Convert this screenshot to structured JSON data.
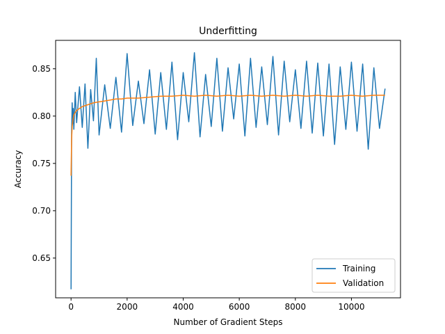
{
  "chart_data": {
    "type": "line",
    "title": "Underfitting",
    "xlabel": "Number of Gradient Steps",
    "ylabel": "Accuracy",
    "xlim": [
      -550,
      11750
    ],
    "ylim": [
      0.608,
      0.88
    ],
    "xticks": [
      0,
      2000,
      4000,
      6000,
      8000,
      10000
    ],
    "xtick_labels": [
      "0",
      "2000",
      "4000",
      "6000",
      "8000",
      "10000"
    ],
    "yticks": [
      0.65,
      0.7,
      0.75,
      0.8,
      0.85
    ],
    "ytick_labels": [
      "0.65",
      "0.70",
      "0.75",
      "0.80",
      "0.85"
    ],
    "grid": false,
    "legend_position": "lower-right",
    "series": [
      {
        "name": "Training",
        "color": "#1f77b4",
        "x": [
          0,
          20,
          40,
          60,
          80,
          100,
          150,
          200,
          300,
          400,
          500,
          600,
          700,
          800,
          900,
          1000,
          1200,
          1400,
          1600,
          1800,
          2000,
          2200,
          2400,
          2600,
          2800,
          3000,
          3200,
          3400,
          3600,
          3800,
          4000,
          4200,
          4400,
          4600,
          4800,
          5000,
          5200,
          5400,
          5600,
          5800,
          6000,
          6200,
          6400,
          6600,
          6800,
          7000,
          7200,
          7400,
          7600,
          7800,
          8000,
          8200,
          8400,
          8600,
          8800,
          9000,
          9200,
          9400,
          9600,
          9800,
          10000,
          10200,
          10400,
          10600,
          10800,
          11000,
          11200
        ],
        "values": [
          0.617,
          0.782,
          0.814,
          0.792,
          0.808,
          0.786,
          0.825,
          0.793,
          0.831,
          0.788,
          0.834,
          0.766,
          0.828,
          0.795,
          0.861,
          0.78,
          0.833,
          0.787,
          0.841,
          0.783,
          0.866,
          0.79,
          0.837,
          0.792,
          0.849,
          0.781,
          0.846,
          0.786,
          0.857,
          0.775,
          0.846,
          0.794,
          0.867,
          0.778,
          0.844,
          0.789,
          0.861,
          0.784,
          0.851,
          0.797,
          0.855,
          0.779,
          0.861,
          0.788,
          0.852,
          0.791,
          0.863,
          0.78,
          0.858,
          0.794,
          0.849,
          0.787,
          0.858,
          0.782,
          0.856,
          0.779,
          0.855,
          0.77,
          0.852,
          0.786,
          0.857,
          0.784,
          0.855,
          0.765,
          0.851,
          0.787,
          0.829
        ]
      },
      {
        "name": "Validation",
        "color": "#ff7f0e",
        "x": [
          0,
          20,
          40,
          60,
          80,
          100,
          150,
          200,
          300,
          400,
          500,
          600,
          700,
          800,
          1000,
          1200,
          1400,
          1600,
          1800,
          2000,
          2400,
          2800,
          3200,
          3600,
          4000,
          4400,
          4800,
          5200,
          5600,
          6000,
          6400,
          6800,
          7200,
          7600,
          8000,
          8400,
          8800,
          9200,
          9600,
          10000,
          10400,
          10800,
          11200
        ],
        "values": [
          0.737,
          0.776,
          0.789,
          0.794,
          0.798,
          0.801,
          0.804,
          0.806,
          0.808,
          0.81,
          0.811,
          0.812,
          0.813,
          0.814,
          0.815,
          0.816,
          0.817,
          0.818,
          0.818,
          0.819,
          0.819,
          0.82,
          0.821,
          0.821,
          0.822,
          0.821,
          0.822,
          0.821,
          0.822,
          0.821,
          0.822,
          0.821,
          0.822,
          0.821,
          0.822,
          0.821,
          0.822,
          0.821,
          0.821,
          0.822,
          0.821,
          0.822,
          0.822
        ]
      }
    ]
  }
}
